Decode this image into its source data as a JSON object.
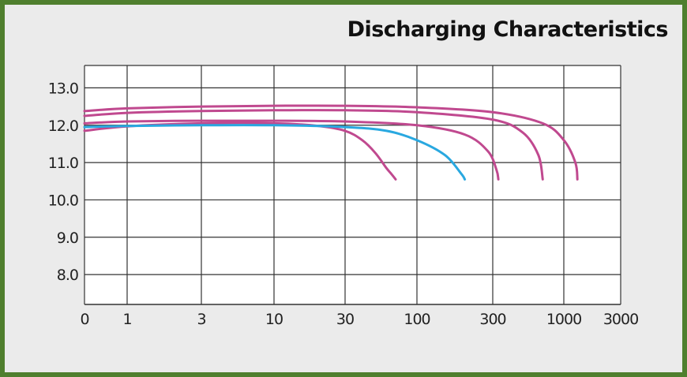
{
  "chart_data": {
    "type": "line",
    "title": "Discharging Characteristics",
    "xlabel": "",
    "ylabel": "",
    "x_ticks": [
      "0",
      "1",
      "3",
      "10",
      "30",
      "100",
      "300",
      "1000",
      "3000"
    ],
    "y_ticks": [
      "13.0",
      "12.0",
      "11.0",
      "10.0",
      "9.0",
      "8.0"
    ],
    "ylim": [
      7.2,
      13.6
    ],
    "grid": true,
    "legend": "none",
    "series": [
      {
        "color": "#c0498f",
        "x": [
          0,
          1,
          3,
          10,
          20,
          30,
          40,
          50,
          60,
          65,
          70
        ],
        "y": [
          11.85,
          11.97,
          12.05,
          12.05,
          11.98,
          11.85,
          11.6,
          11.25,
          10.85,
          10.7,
          10.55
        ]
      },
      {
        "color": "#29a8e0",
        "x": [
          0,
          1,
          3,
          10,
          30,
          60,
          100,
          150,
          190,
          200
        ],
        "y": [
          11.95,
          11.98,
          12.0,
          12.0,
          11.95,
          11.85,
          11.6,
          11.2,
          10.7,
          10.55
        ]
      },
      {
        "color": "#c0498f",
        "x": [
          0,
          1,
          3,
          10,
          30,
          100,
          200,
          280,
          320,
          330
        ],
        "y": [
          12.05,
          12.1,
          12.12,
          12.12,
          12.1,
          12.0,
          11.75,
          11.3,
          10.8,
          10.55
        ]
      },
      {
        "color": "#c0498f",
        "x": [
          0,
          1,
          3,
          10,
          30,
          100,
          300,
          500,
          650,
          700
        ],
        "y": [
          12.25,
          12.33,
          12.38,
          12.4,
          12.4,
          12.35,
          12.15,
          11.8,
          11.2,
          10.55
        ]
      },
      {
        "color": "#c0498f",
        "x": [
          0,
          1,
          3,
          10,
          30,
          100,
          300,
          700,
          1000,
          1250,
          1300
        ],
        "y": [
          12.38,
          12.45,
          12.5,
          12.52,
          12.52,
          12.48,
          12.35,
          12.05,
          11.6,
          11.0,
          10.55
        ]
      }
    ]
  }
}
